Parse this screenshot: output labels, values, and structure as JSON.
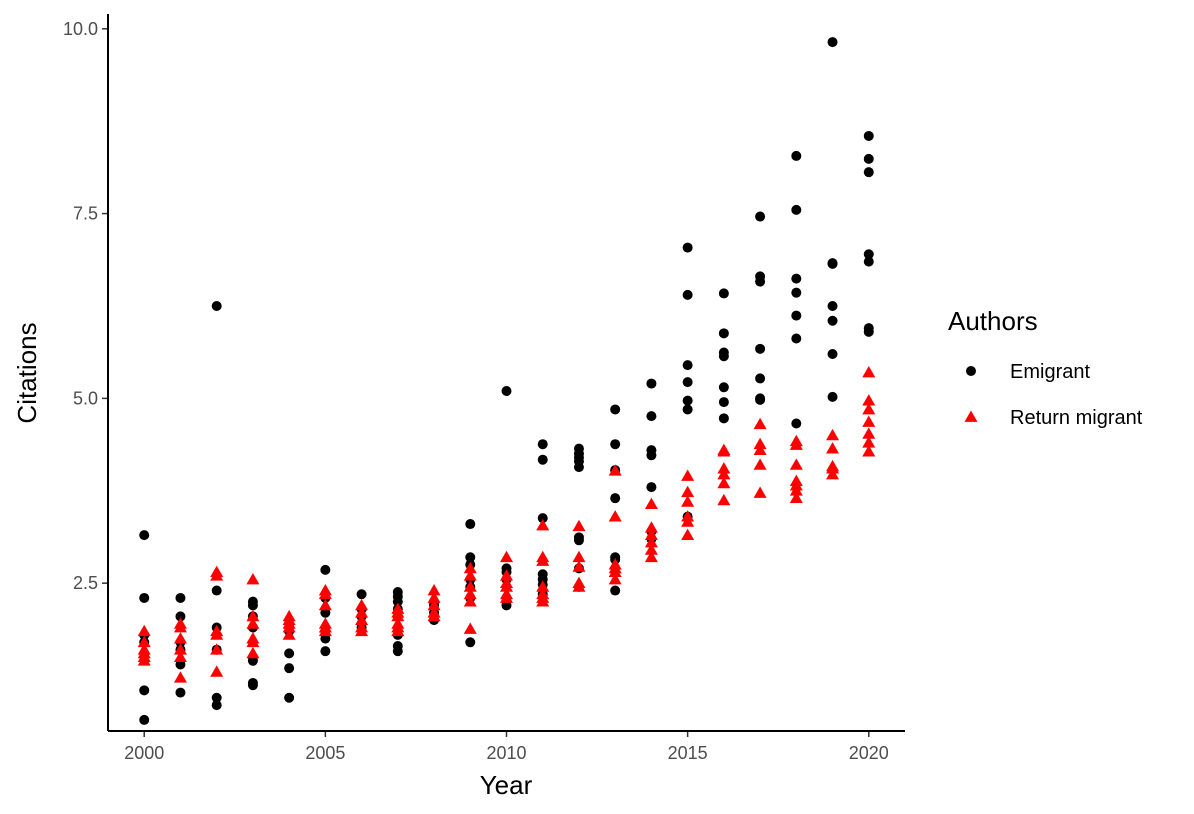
{
  "chart_data": {
    "type": "scatter",
    "title": "",
    "xlabel": "Year",
    "ylabel": "Citations",
    "xlim": [
      1999,
      2021
    ],
    "ylim": [
      0.5,
      10.2
    ],
    "x_ticks": [
      2000,
      2005,
      2010,
      2015,
      2020
    ],
    "y_ticks": [
      2.5,
      5.0,
      7.5,
      10.0
    ],
    "x_tick_labels": [
      "2000",
      "2005",
      "2010",
      "2015",
      "2020"
    ],
    "y_tick_labels": [
      "2.5",
      "5.0",
      "7.5",
      "10.0"
    ],
    "grid": false,
    "legend": {
      "title": "Authors",
      "placement": "right"
    },
    "series": [
      {
        "name": "Emigrant",
        "marker": "circle",
        "color": "#000000",
        "points": [
          [
            2000,
            3.15
          ],
          [
            2000,
            2.3
          ],
          [
            2000,
            1.8
          ],
          [
            2000,
            1.7
          ],
          [
            2000,
            1.55
          ],
          [
            2000,
            1.05
          ],
          [
            2000,
            0.65
          ],
          [
            2001,
            2.3
          ],
          [
            2001,
            2.05
          ],
          [
            2001,
            1.7
          ],
          [
            2001,
            1.6
          ],
          [
            2001,
            1.4
          ],
          [
            2001,
            1.02
          ],
          [
            2002,
            6.25
          ],
          [
            2002,
            2.4
          ],
          [
            2002,
            1.9
          ],
          [
            2002,
            1.6
          ],
          [
            2002,
            0.95
          ],
          [
            2002,
            0.85
          ],
          [
            2003,
            2.25
          ],
          [
            2003,
            2.2
          ],
          [
            2003,
            2.05
          ],
          [
            2003,
            1.9
          ],
          [
            2003,
            1.5
          ],
          [
            2003,
            1.45
          ],
          [
            2003,
            1.15
          ],
          [
            2003,
            1.12
          ],
          [
            2004,
            1.95
          ],
          [
            2004,
            1.85
          ],
          [
            2004,
            1.55
          ],
          [
            2004,
            1.35
          ],
          [
            2004,
            0.95
          ],
          [
            2005,
            2.68
          ],
          [
            2005,
            2.3
          ],
          [
            2005,
            2.1
          ],
          [
            2005,
            1.85
          ],
          [
            2005,
            1.75
          ],
          [
            2005,
            1.58
          ],
          [
            2006,
            2.35
          ],
          [
            2006,
            2.15
          ],
          [
            2006,
            2.05
          ],
          [
            2006,
            1.95
          ],
          [
            2006,
            1.9
          ],
          [
            2007,
            2.38
          ],
          [
            2007,
            2.32
          ],
          [
            2007,
            2.25
          ],
          [
            2007,
            2.15
          ],
          [
            2007,
            2.05
          ],
          [
            2007,
            1.8
          ],
          [
            2007,
            1.65
          ],
          [
            2007,
            1.58
          ],
          [
            2008,
            2.25
          ],
          [
            2008,
            2.2
          ],
          [
            2008,
            2.1
          ],
          [
            2008,
            2.0
          ],
          [
            2009,
            3.3
          ],
          [
            2009,
            2.85
          ],
          [
            2009,
            2.75
          ],
          [
            2009,
            2.55
          ],
          [
            2009,
            2.45
          ],
          [
            2009,
            2.3
          ],
          [
            2009,
            1.7
          ],
          [
            2010,
            5.1
          ],
          [
            2010,
            2.7
          ],
          [
            2010,
            2.65
          ],
          [
            2010,
            2.55
          ],
          [
            2010,
            2.3
          ],
          [
            2010,
            2.2
          ],
          [
            2011,
            4.38
          ],
          [
            2011,
            4.17
          ],
          [
            2011,
            3.38
          ],
          [
            2011,
            2.62
          ],
          [
            2011,
            2.55
          ],
          [
            2011,
            2.48
          ],
          [
            2011,
            2.35
          ],
          [
            2012,
            4.32
          ],
          [
            2012,
            4.25
          ],
          [
            2012,
            4.2
          ],
          [
            2012,
            4.15
          ],
          [
            2012,
            4.07
          ],
          [
            2012,
            3.12
          ],
          [
            2012,
            3.08
          ],
          [
            2012,
            2.7
          ],
          [
            2012,
            2.45
          ],
          [
            2013,
            4.85
          ],
          [
            2013,
            4.38
          ],
          [
            2013,
            4.03
          ],
          [
            2013,
            3.65
          ],
          [
            2013,
            2.85
          ],
          [
            2013,
            2.82
          ],
          [
            2013,
            2.4
          ],
          [
            2014,
            5.2
          ],
          [
            2014,
            4.76
          ],
          [
            2014,
            4.3
          ],
          [
            2014,
            4.23
          ],
          [
            2014,
            3.8
          ],
          [
            2014,
            3.2
          ],
          [
            2014,
            3.1
          ],
          [
            2015,
            7.04
          ],
          [
            2015,
            6.4
          ],
          [
            2015,
            5.45
          ],
          [
            2015,
            5.22
          ],
          [
            2015,
            4.97
          ],
          [
            2015,
            4.85
          ],
          [
            2015,
            3.4
          ],
          [
            2016,
            6.42
          ],
          [
            2016,
            5.88
          ],
          [
            2016,
            5.62
          ],
          [
            2016,
            5.57
          ],
          [
            2016,
            5.15
          ],
          [
            2016,
            4.95
          ],
          [
            2016,
            4.73
          ],
          [
            2017,
            7.46
          ],
          [
            2017,
            6.65
          ],
          [
            2017,
            6.58
          ],
          [
            2017,
            5.67
          ],
          [
            2017,
            5.27
          ],
          [
            2017,
            5.0
          ],
          [
            2017,
            4.98
          ],
          [
            2018,
            8.28
          ],
          [
            2018,
            7.55
          ],
          [
            2018,
            6.62
          ],
          [
            2018,
            6.43
          ],
          [
            2018,
            6.12
          ],
          [
            2018,
            5.81
          ],
          [
            2018,
            4.66
          ],
          [
            2019,
            9.82
          ],
          [
            2019,
            6.83
          ],
          [
            2019,
            6.82
          ],
          [
            2019,
            6.25
          ],
          [
            2019,
            6.05
          ],
          [
            2019,
            5.6
          ],
          [
            2019,
            5.02
          ],
          [
            2020,
            8.55
          ],
          [
            2020,
            8.24
          ],
          [
            2020,
            8.06
          ],
          [
            2020,
            6.95
          ],
          [
            2020,
            6.85
          ],
          [
            2020,
            5.95
          ],
          [
            2020,
            5.9
          ]
        ]
      },
      {
        "name": "Return migrant",
        "marker": "triangle",
        "color": "#ff0000",
        "points": [
          [
            2000,
            1.85
          ],
          [
            2000,
            1.7
          ],
          [
            2000,
            1.6
          ],
          [
            2000,
            1.55
          ],
          [
            2000,
            1.5
          ],
          [
            2000,
            1.45
          ],
          [
            2001,
            1.95
          ],
          [
            2001,
            1.9
          ],
          [
            2001,
            1.75
          ],
          [
            2001,
            1.6
          ],
          [
            2001,
            1.5
          ],
          [
            2001,
            1.22
          ],
          [
            2002,
            2.65
          ],
          [
            2002,
            2.6
          ],
          [
            2002,
            1.85
          ],
          [
            2002,
            1.8
          ],
          [
            2002,
            1.6
          ],
          [
            2002,
            1.3
          ],
          [
            2003,
            2.55
          ],
          [
            2003,
            2.05
          ],
          [
            2003,
            1.95
          ],
          [
            2003,
            1.75
          ],
          [
            2003,
            1.7
          ],
          [
            2003,
            1.55
          ],
          [
            2004,
            2.05
          ],
          [
            2004,
            2.0
          ],
          [
            2004,
            1.95
          ],
          [
            2004,
            1.9
          ],
          [
            2004,
            1.8
          ],
          [
            2005,
            2.4
          ],
          [
            2005,
            2.35
          ],
          [
            2005,
            2.2
          ],
          [
            2005,
            1.95
          ],
          [
            2005,
            1.9
          ],
          [
            2005,
            1.85
          ],
          [
            2006,
            2.2
          ],
          [
            2006,
            2.1
          ],
          [
            2006,
            2.0
          ],
          [
            2006,
            1.9
          ],
          [
            2006,
            1.85
          ],
          [
            2007,
            2.15
          ],
          [
            2007,
            2.1
          ],
          [
            2007,
            2.05
          ],
          [
            2007,
            1.95
          ],
          [
            2007,
            1.9
          ],
          [
            2007,
            1.85
          ],
          [
            2008,
            2.4
          ],
          [
            2008,
            2.3
          ],
          [
            2008,
            2.2
          ],
          [
            2008,
            2.1
          ],
          [
            2008,
            2.05
          ],
          [
            2009,
            2.7
          ],
          [
            2009,
            2.6
          ],
          [
            2009,
            2.45
          ],
          [
            2009,
            2.35
          ],
          [
            2009,
            2.25
          ],
          [
            2009,
            1.88
          ],
          [
            2010,
            2.85
          ],
          [
            2010,
            2.6
          ],
          [
            2010,
            2.5
          ],
          [
            2010,
            2.45
          ],
          [
            2010,
            2.35
          ],
          [
            2010,
            2.3
          ],
          [
            2011,
            3.28
          ],
          [
            2011,
            2.85
          ],
          [
            2011,
            2.8
          ],
          [
            2011,
            2.45
          ],
          [
            2011,
            2.35
          ],
          [
            2011,
            2.3
          ],
          [
            2011,
            2.25
          ],
          [
            2012,
            3.27
          ],
          [
            2012,
            2.85
          ],
          [
            2012,
            2.72
          ],
          [
            2012,
            2.5
          ],
          [
            2012,
            2.45
          ],
          [
            2013,
            4.02
          ],
          [
            2013,
            3.4
          ],
          [
            2013,
            2.75
          ],
          [
            2013,
            2.7
          ],
          [
            2013,
            2.65
          ],
          [
            2013,
            2.55
          ],
          [
            2014,
            3.57
          ],
          [
            2014,
            3.25
          ],
          [
            2014,
            3.15
          ],
          [
            2014,
            3.05
          ],
          [
            2014,
            2.95
          ],
          [
            2014,
            2.85
          ],
          [
            2015,
            3.95
          ],
          [
            2015,
            3.73
          ],
          [
            2015,
            3.6
          ],
          [
            2015,
            3.4
          ],
          [
            2015,
            3.33
          ],
          [
            2015,
            3.15
          ],
          [
            2016,
            4.3
          ],
          [
            2016,
            4.28
          ],
          [
            2016,
            4.05
          ],
          [
            2016,
            3.97
          ],
          [
            2016,
            3.85
          ],
          [
            2016,
            3.62
          ],
          [
            2017,
            4.65
          ],
          [
            2017,
            4.38
          ],
          [
            2017,
            4.3
          ],
          [
            2017,
            4.1
          ],
          [
            2017,
            3.72
          ],
          [
            2018,
            4.42
          ],
          [
            2018,
            4.37
          ],
          [
            2018,
            4.1
          ],
          [
            2018,
            3.88
          ],
          [
            2018,
            3.82
          ],
          [
            2018,
            3.75
          ],
          [
            2018,
            3.65
          ],
          [
            2019,
            4.5
          ],
          [
            2019,
            4.32
          ],
          [
            2019,
            4.08
          ],
          [
            2019,
            4.05
          ],
          [
            2019,
            3.97
          ],
          [
            2020,
            5.35
          ],
          [
            2020,
            4.97
          ],
          [
            2020,
            4.85
          ],
          [
            2020,
            4.68
          ],
          [
            2020,
            4.52
          ],
          [
            2020,
            4.4
          ],
          [
            2020,
            4.28
          ]
        ]
      }
    ]
  }
}
